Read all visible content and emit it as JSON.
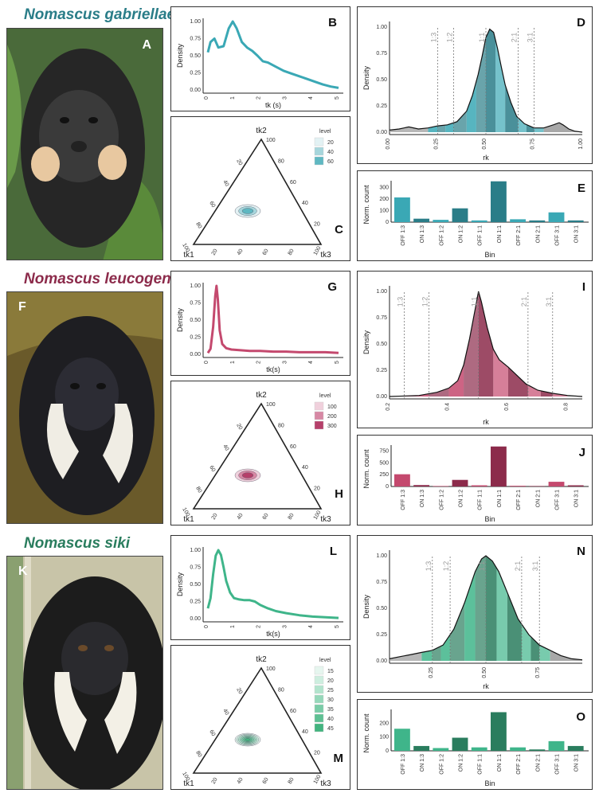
{
  "rows": [
    {
      "species": "Nomascus gabriellae",
      "color": "#3aa8b5",
      "dark": "#2a7d88",
      "photo_letter": "A",
      "density_letter": "B",
      "ternary_letter": "C",
      "rk_letter": "D",
      "bar_letter": "E",
      "density": {
        "xlabel": "tk (s)",
        "ylabel": "Density",
        "xticks": [
          "0",
          "1",
          "2",
          "3",
          "4",
          "5"
        ],
        "yticks": [
          "0.00",
          "0.25",
          "0.50",
          "0.75",
          "1.00"
        ],
        "x": [
          0,
          0.1,
          0.25,
          0.4,
          0.6,
          0.8,
          0.95,
          1.1,
          1.3,
          1.5,
          1.7,
          1.9,
          2.1,
          2.3,
          2.6,
          2.9,
          3.2,
          3.5,
          3.8,
          4.1,
          4.4,
          4.7,
          5.0
        ],
        "y": [
          0.55,
          0.7,
          0.75,
          0.62,
          0.64,
          0.9,
          1.0,
          0.9,
          0.7,
          0.62,
          0.57,
          0.5,
          0.42,
          0.4,
          0.34,
          0.28,
          0.24,
          0.2,
          0.16,
          0.12,
          0.08,
          0.05,
          0.03
        ]
      },
      "ternary": {
        "top": "tk2",
        "left": "tk1",
        "right": "tk3",
        "ticks": [
          "20",
          "40",
          "60",
          "80",
          "100"
        ],
        "legend_title": "level",
        "legend_levels": [
          "20",
          "40",
          "60"
        ],
        "legend_colors": [
          "#e3f2f4",
          "#a6d6dc",
          "#5fb8c2"
        ]
      },
      "rk": {
        "xlabel": "rk",
        "ylabel": "Density",
        "xticks": [
          "0.00",
          "0.25",
          "0.50",
          "0.75",
          "1.00"
        ],
        "xlim": [
          0,
          1
        ],
        "yticks": [
          "0.00",
          "0.25",
          "0.50",
          "0.75",
          "1.00"
        ],
        "ratios": [
          "1:3",
          "1:2",
          "1:1",
          "2:1",
          "3:1"
        ],
        "ratio_pos": [
          0.25,
          0.333,
          0.5,
          0.667,
          0.75
        ],
        "x": [
          0,
          0.05,
          0.1,
          0.15,
          0.2,
          0.25,
          0.3,
          0.35,
          0.4,
          0.43,
          0.46,
          0.48,
          0.5,
          0.52,
          0.54,
          0.56,
          0.58,
          0.6,
          0.63,
          0.66,
          0.7,
          0.75,
          0.8,
          0.85,
          0.88,
          0.9,
          0.93,
          0.96,
          1.0
        ],
        "y": [
          0.02,
          0.03,
          0.05,
          0.03,
          0.04,
          0.06,
          0.07,
          0.1,
          0.2,
          0.35,
          0.55,
          0.72,
          0.9,
          0.98,
          0.95,
          0.8,
          0.62,
          0.45,
          0.28,
          0.15,
          0.08,
          0.04,
          0.04,
          0.07,
          0.09,
          0.07,
          0.03,
          0.01,
          0.0
        ]
      },
      "bars": {
        "xlabel": "Bin",
        "ylabel": "Norm. count",
        "yticks": [
          "0",
          "100",
          "200",
          "300"
        ],
        "ymax": 360,
        "categories": [
          "OFF 1:3",
          "ON 1:3",
          "OFF 1:2",
          "ON 1:2",
          "OFF 1:1",
          "ON 1:1",
          "OFF 2:1",
          "ON 2:1",
          "OFF 3:1",
          "ON 3:1"
        ],
        "values": [
          215,
          30,
          20,
          120,
          15,
          355,
          25,
          15,
          85,
          15
        ]
      }
    },
    {
      "species": "Nomascus leucogenys",
      "color": "#c4496e",
      "dark": "#8c2b4b",
      "photo_letter": "F",
      "density_letter": "G",
      "ternary_letter": "H",
      "rk_letter": "I",
      "bar_letter": "J",
      "density": {
        "xlabel": "tk(s)",
        "ylabel": "Density",
        "xticks": [
          "0",
          "1",
          "2",
          "3",
          "4",
          "5"
        ],
        "yticks": [
          "0.00",
          "0.25",
          "0.50",
          "0.75",
          "1.00"
        ],
        "x": [
          0,
          0.1,
          0.2,
          0.28,
          0.33,
          0.38,
          0.45,
          0.55,
          0.7,
          0.9,
          1.2,
          1.6,
          2.0,
          2.5,
          3.0,
          3.5,
          4.0,
          4.5,
          5.0
        ],
        "y": [
          0.02,
          0.08,
          0.4,
          0.85,
          1.0,
          0.8,
          0.35,
          0.15,
          0.09,
          0.07,
          0.06,
          0.05,
          0.05,
          0.04,
          0.04,
          0.03,
          0.03,
          0.03,
          0.02
        ]
      },
      "ternary": {
        "top": "tk2",
        "left": "tk1",
        "right": "tk3",
        "ticks": [
          "20",
          "40",
          "60",
          "80",
          "100"
        ],
        "legend_title": "level",
        "legend_levels": [
          "100",
          "200",
          "300"
        ],
        "legend_colors": [
          "#f0d0dc",
          "#d788a4",
          "#b5406a"
        ]
      },
      "rk": {
        "xlabel": "rk",
        "ylabel": "Density",
        "xticks": [
          "0.2",
          "0.4",
          "0.6",
          "0.8"
        ],
        "xlim": [
          0.2,
          0.85
        ],
        "yticks": [
          "0.00",
          "0.25",
          "0.50",
          "0.75",
          "1.00"
        ],
        "ratios": [
          "1:3",
          "1:2",
          "1:1",
          "2:1",
          "3:1"
        ],
        "ratio_pos": [
          0.25,
          0.333,
          0.5,
          0.667,
          0.75
        ],
        "x": [
          0.2,
          0.3,
          0.36,
          0.4,
          0.43,
          0.45,
          0.47,
          0.49,
          0.5,
          0.51,
          0.53,
          0.55,
          0.57,
          0.6,
          0.63,
          0.66,
          0.7,
          0.75,
          0.8,
          0.85
        ],
        "y": [
          0.0,
          0.01,
          0.04,
          0.08,
          0.15,
          0.3,
          0.55,
          0.85,
          1.0,
          0.9,
          0.65,
          0.45,
          0.35,
          0.28,
          0.2,
          0.12,
          0.06,
          0.03,
          0.01,
          0.0
        ]
      },
      "bars": {
        "xlabel": "Bin",
        "ylabel": "Norm. count",
        "yticks": [
          "0",
          "250",
          "500",
          "750"
        ],
        "ymax": 880,
        "categories": [
          "OFF 1:3",
          "ON 1:3",
          "OFF 1:2",
          "ON 1:2",
          "OFF 1:1",
          "ON 1:1",
          "OFF 2:1",
          "ON 2:1",
          "OFF 3:1",
          "ON 3:1"
        ],
        "values": [
          260,
          30,
          10,
          140,
          25,
          850,
          15,
          10,
          100,
          25
        ]
      }
    },
    {
      "species": "Nomascus siki",
      "color": "#3fb58a",
      "dark": "#2a7d5e",
      "photo_letter": "K",
      "density_letter": "L",
      "ternary_letter": "M",
      "rk_letter": "N",
      "bar_letter": "O",
      "density": {
        "xlabel": "tk(s)",
        "ylabel": "Density",
        "xticks": [
          "0",
          "1",
          "2",
          "3",
          "4",
          "5"
        ],
        "yticks": [
          "0.00",
          "0.25",
          "0.50",
          "0.75",
          "1.00"
        ],
        "x": [
          0,
          0.1,
          0.2,
          0.3,
          0.4,
          0.5,
          0.6,
          0.7,
          0.85,
          1.0,
          1.2,
          1.4,
          1.6,
          1.8,
          2.0,
          2.3,
          2.6,
          3.0,
          3.5,
          4.0,
          4.5,
          5.0
        ],
        "y": [
          0.15,
          0.3,
          0.65,
          0.92,
          1.0,
          0.93,
          0.75,
          0.55,
          0.38,
          0.3,
          0.28,
          0.27,
          0.27,
          0.25,
          0.2,
          0.15,
          0.11,
          0.08,
          0.05,
          0.03,
          0.02,
          0.01
        ]
      },
      "ternary": {
        "top": "tk2",
        "left": "tk1",
        "right": "tk3",
        "ticks": [
          "20",
          "40",
          "60",
          "80",
          "100"
        ],
        "legend_title": "level",
        "legend_levels": [
          "15",
          "20",
          "25",
          "30",
          "35",
          "40",
          "45"
        ],
        "legend_colors": [
          "#e6f6ef",
          "#cdeedf",
          "#b2e4cd",
          "#96d8ba",
          "#7acca7",
          "#5ec093",
          "#42b47f"
        ]
      },
      "rk": {
        "xlabel": "rk",
        "ylabel": "Density",
        "xticks": [
          "0.25",
          "0.50",
          "0.75"
        ],
        "xlim": [
          0.05,
          0.95
        ],
        "yticks": [
          "0.00",
          "0.25",
          "0.50",
          "0.75",
          "1.00"
        ],
        "ratios": [
          "1:3",
          "1:2",
          "1:1",
          "2:1",
          "3:1"
        ],
        "ratio_pos": [
          0.25,
          0.333,
          0.5,
          0.667,
          0.75
        ],
        "x": [
          0.05,
          0.1,
          0.15,
          0.2,
          0.25,
          0.3,
          0.35,
          0.4,
          0.45,
          0.48,
          0.5,
          0.53,
          0.56,
          0.6,
          0.65,
          0.7,
          0.75,
          0.8,
          0.85,
          0.9,
          0.95
        ],
        "y": [
          0.02,
          0.04,
          0.06,
          0.08,
          0.1,
          0.15,
          0.3,
          0.55,
          0.85,
          0.97,
          1.0,
          0.95,
          0.85,
          0.65,
          0.4,
          0.25,
          0.15,
          0.1,
          0.05,
          0.02,
          0.01
        ]
      },
      "bars": {
        "xlabel": "Bin",
        "ylabel": "Norm. count",
        "yticks": [
          "0",
          "100",
          "200"
        ],
        "ymax": 300,
        "categories": [
          "OFF 1:3",
          "ON 1:3",
          "OFF 1:2",
          "ON 1:2",
          "OFF 1:1",
          "ON 1:1",
          "OFF 2:1",
          "ON 2:1",
          "OFF 3:1",
          "ON 3:1"
        ],
        "values": [
          160,
          35,
          20,
          95,
          25,
          280,
          25,
          10,
          70,
          35
        ]
      }
    }
  ]
}
